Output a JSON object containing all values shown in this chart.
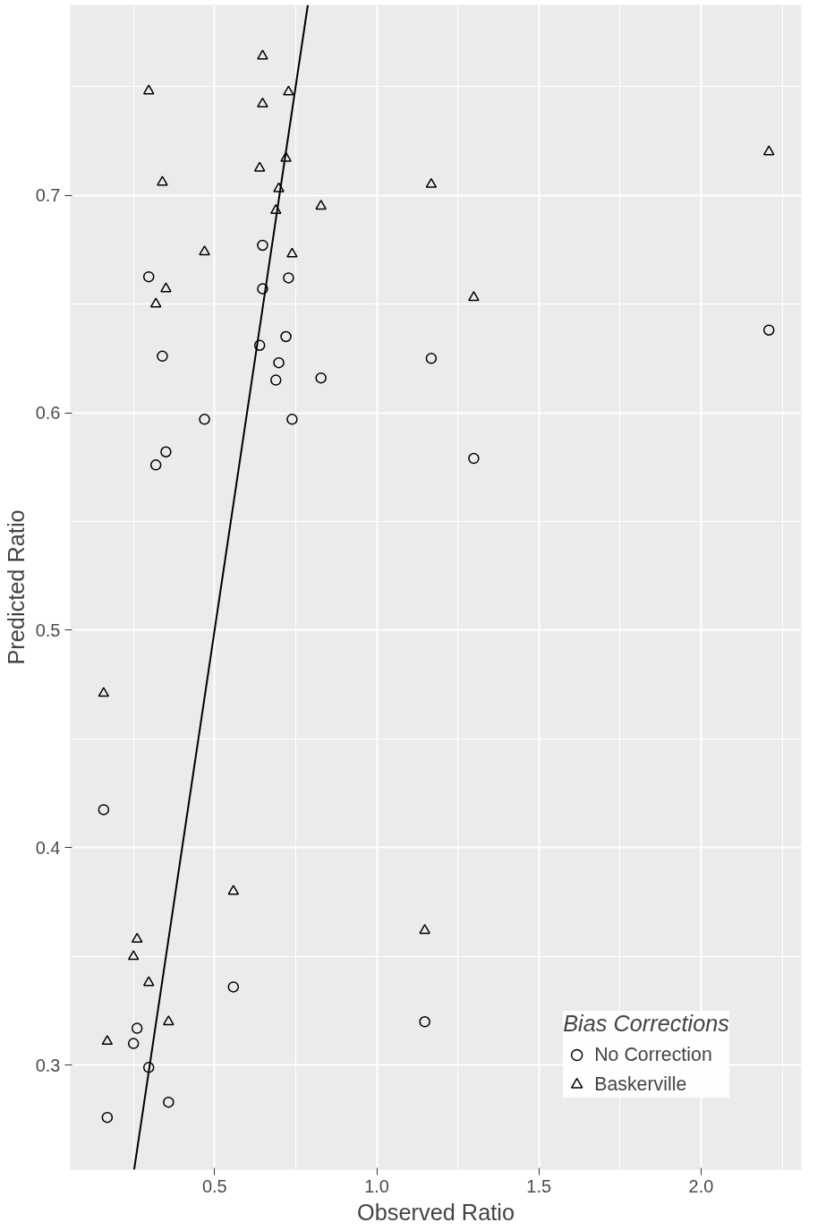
{
  "chart_data": {
    "type": "scatter",
    "xlabel": "Observed Ratio",
    "ylabel": "Predicted Ratio",
    "legend_title": "Bias Corrections",
    "xlim": [
      0.055,
      2.309
    ],
    "ylim": [
      0.252,
      0.7875
    ],
    "xticks": [
      0.5,
      {
        "value": 1,
        "label": "1.0"
      },
      1.5,
      {
        "value": 2,
        "label": "2.0"
      }
    ],
    "yticks": [
      0.3,
      0.4,
      0.5,
      0.6,
      0.7
    ],
    "grid": true,
    "legend": "bottom right",
    "series": [
      {
        "name": "No Correction",
        "color": "#000000",
        "marker": "circle",
        "x": [
          0.158,
          0.169,
          0.25,
          0.261,
          0.297,
          0.297,
          0.319,
          0.339,
          0.35,
          0.358,
          0.469,
          0.558,
          0.639,
          0.648,
          0.648,
          0.689,
          0.698,
          0.72,
          0.728,
          0.739,
          0.828,
          1.148,
          1.168,
          1.299,
          2.209
        ],
        "values": [
          0.4175,
          0.276,
          0.31,
          0.317,
          0.6625,
          0.299,
          0.576,
          0.626,
          0.582,
          0.283,
          0.597,
          0.336,
          0.631,
          0.677,
          0.657,
          0.615,
          0.623,
          0.635,
          0.662,
          0.597,
          0.616,
          0.32,
          0.625,
          0.579,
          0.638
        ]
      },
      {
        "name": "Baskerville",
        "color": "#000000",
        "marker": "triangle",
        "x": [
          0.158,
          0.169,
          0.25,
          0.261,
          0.297,
          0.297,
          0.319,
          0.339,
          0.35,
          0.358,
          0.469,
          0.558,
          0.639,
          0.648,
          0.648,
          0.689,
          0.698,
          0.72,
          0.728,
          0.739,
          0.828,
          1.148,
          1.168,
          1.299,
          2.209
        ],
        "values": [
          0.471,
          0.311,
          0.35,
          0.358,
          0.748,
          0.338,
          0.65,
          0.706,
          0.657,
          0.32,
          0.674,
          0.38,
          0.7125,
          0.764,
          0.742,
          0.693,
          0.703,
          0.717,
          0.7475,
          0.673,
          0.695,
          0.362,
          0.705,
          0.653,
          0.72
        ]
      },
      {
        "type": "line",
        "color": "#000000",
        "x": [
          0.252,
          0.7875
        ],
        "values": [
          0.252,
          0.7875
        ]
      }
    ]
  }
}
